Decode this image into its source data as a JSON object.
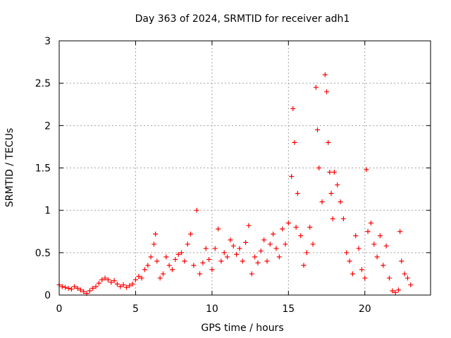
{
  "chart_data": {
    "type": "scatter",
    "title": "Day 363 of 2024, SRMTID for receiver adh1",
    "xlabel": "GPS time / hours",
    "ylabel": "SRMTID / TECUs",
    "xlim": [
      0,
      24.3
    ],
    "ylim": [
      0,
      3
    ],
    "grid": true,
    "marker": "plus",
    "x_ticks": [
      0,
      5,
      10,
      15,
      20
    ],
    "x_tick_labels": [
      "0",
      "5",
      "10",
      "15",
      "20"
    ],
    "y_ticks": [
      0,
      0.5,
      1,
      1.5,
      2,
      2.5,
      3
    ],
    "y_tick_labels": [
      "0",
      "0.5",
      "1",
      "1.5",
      "2",
      "2.5",
      "3"
    ],
    "series": [
      {
        "name": "adh1",
        "color": "#ff0000",
        "x": [
          0.0,
          0.2,
          0.4,
          0.6,
          0.8,
          1.0,
          1.2,
          1.4,
          1.6,
          1.8,
          2.0,
          2.2,
          2.4,
          2.6,
          2.8,
          3.0,
          3.2,
          3.4,
          3.6,
          3.8,
          4.0,
          4.2,
          4.4,
          4.6,
          4.8,
          5.0,
          5.2,
          5.4,
          5.6,
          5.8,
          6.0,
          6.2,
          6.3,
          6.4,
          6.6,
          6.8,
          7.0,
          7.2,
          7.4,
          7.6,
          7.8,
          8.0,
          8.2,
          8.4,
          8.6,
          8.8,
          9.0,
          9.2,
          9.4,
          9.6,
          9.8,
          10.0,
          10.2,
          10.4,
          10.6,
          10.8,
          11.0,
          11.2,
          11.4,
          11.6,
          11.8,
          12.0,
          12.2,
          12.4,
          12.6,
          12.8,
          13.0,
          13.2,
          13.4,
          13.6,
          13.8,
          14.0,
          14.2,
          14.4,
          14.6,
          14.8,
          15.0,
          15.2,
          15.3,
          15.4,
          15.5,
          15.6,
          15.8,
          16.0,
          16.2,
          16.4,
          16.6,
          16.8,
          16.9,
          17.0,
          17.2,
          17.4,
          17.5,
          17.6,
          17.7,
          17.8,
          17.9,
          18.0,
          18.2,
          18.4,
          18.6,
          18.8,
          19.0,
          19.2,
          19.4,
          19.6,
          19.8,
          20.0,
          20.1,
          20.2,
          20.4,
          20.6,
          20.8,
          21.0,
          21.2,
          21.4,
          21.6,
          21.8,
          22.0,
          22.2,
          22.3,
          22.4,
          22.6,
          22.8,
          23.0
        ],
        "y": [
          0.12,
          0.1,
          0.09,
          0.08,
          0.07,
          0.1,
          0.08,
          0.06,
          0.04,
          0.02,
          0.05,
          0.08,
          0.1,
          0.14,
          0.18,
          0.2,
          0.18,
          0.15,
          0.17,
          0.13,
          0.1,
          0.12,
          0.09,
          0.11,
          0.13,
          0.18,
          0.22,
          0.2,
          0.3,
          0.35,
          0.45,
          0.6,
          0.72,
          0.4,
          0.2,
          0.25,
          0.45,
          0.35,
          0.3,
          0.42,
          0.48,
          0.5,
          0.4,
          0.6,
          0.72,
          0.35,
          1.0,
          0.25,
          0.38,
          0.55,
          0.42,
          0.3,
          0.55,
          0.78,
          0.4,
          0.5,
          0.45,
          0.65,
          0.58,
          0.48,
          0.55,
          0.4,
          0.62,
          0.82,
          0.25,
          0.45,
          0.38,
          0.52,
          0.65,
          0.4,
          0.6,
          0.72,
          0.55,
          0.45,
          0.78,
          0.6,
          0.85,
          1.4,
          2.2,
          1.8,
          0.8,
          1.2,
          0.7,
          0.35,
          0.5,
          0.8,
          0.6,
          2.45,
          1.95,
          1.5,
          1.1,
          2.6,
          2.4,
          1.8,
          1.45,
          1.2,
          0.9,
          1.45,
          1.3,
          1.1,
          0.9,
          0.5,
          0.4,
          0.25,
          0.7,
          0.55,
          0.3,
          0.2,
          1.48,
          0.75,
          0.85,
          0.6,
          0.45,
          0.7,
          0.35,
          0.58,
          0.2,
          0.05,
          0.03,
          0.06,
          0.75,
          0.4,
          0.25,
          0.2,
          0.12
        ]
      }
    ]
  }
}
